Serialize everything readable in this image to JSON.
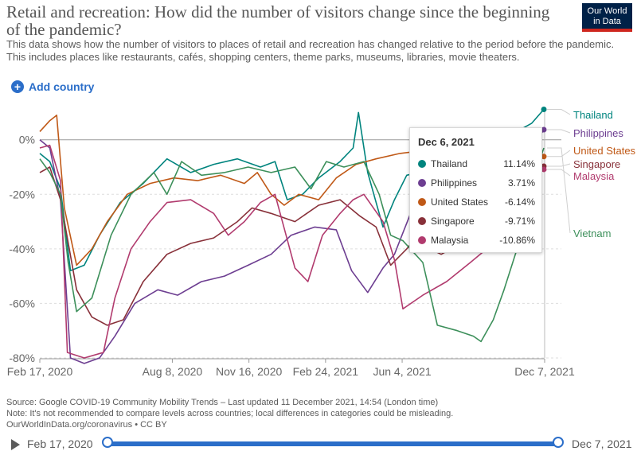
{
  "header": {
    "title": "Retail and recreation: How did the number of visitors change since the beginning of the pandemic?",
    "subtitle_line1": "This data shows how the number of visitors to places of retail and recreation has changed relative to the period before the pandemic.",
    "subtitle_line2": "This includes places like restaurants, cafés, shopping centers, theme parks, museums, libraries, movie theaters.",
    "logo_line1": "Our World",
    "logo_line2": "in Data"
  },
  "controls": {
    "add_country_label": "Add country"
  },
  "tooltip": {
    "date": "Dec 6, 2021",
    "rows": [
      {
        "name": "Thailand",
        "value": "11.14%",
        "color": "#00847e"
      },
      {
        "name": "Philippines",
        "value": "3.71%",
        "color": "#6d3e91"
      },
      {
        "name": "United States",
        "value": "-6.14%",
        "color": "#c05917"
      },
      {
        "name": "Singapore",
        "value": "-9.71%",
        "color": "#883039"
      },
      {
        "name": "Malaysia",
        "value": "-10.86%",
        "color": "#b13b6e"
      }
    ]
  },
  "footer": {
    "source": "Source: Google COVID-19 Community Mobility Trends – Last updated 11 December 2021, 14:54 (London time)",
    "note": "Note: It's not recommended to compare levels across countries; local differences in categories could be misleading.",
    "license": "OurWorldInData.org/coronavirus • CC BY"
  },
  "timeline": {
    "start_label": "Feb 17, 2020",
    "end_label": "Dec 7, 2021"
  },
  "chart_data": {
    "type": "line",
    "x_range": [
      "2020-02-17",
      "2021-12-07"
    ],
    "ylim": [
      -80,
      11
    ],
    "yticks": [
      0,
      -20,
      -40,
      -60,
      -80
    ],
    "ytick_labels": [
      "0%",
      "-20%",
      "-40%",
      "-60%",
      "-80%"
    ],
    "xticks": [
      "2020-02-17",
      "2020-08-08",
      "2020-11-16",
      "2021-02-24",
      "2021-06-04",
      "2021-12-07"
    ],
    "xtick_labels": [
      "Feb 17, 2020",
      "Aug 8, 2020",
      "Nov 16, 2020",
      "Feb 24, 2021",
      "Jun 4, 2021",
      "Dec 7, 2021"
    ],
    "grid": "horizontal dashed",
    "legend": "line end labels on the right",
    "series": [
      {
        "name": "Thailand",
        "color": "#00847e",
        "values": [
          [
            "2020-02-17",
            -5
          ],
          [
            "2020-03-01",
            -8
          ],
          [
            "2020-03-15",
            -18
          ],
          [
            "2020-03-28",
            -48
          ],
          [
            "2020-04-15",
            -46
          ],
          [
            "2020-05-05",
            -35
          ],
          [
            "2020-06-01",
            -23
          ],
          [
            "2020-07-01",
            -16
          ],
          [
            "2020-08-01",
            -7
          ],
          [
            "2020-09-01",
            -12
          ],
          [
            "2020-10-01",
            -9
          ],
          [
            "2020-11-01",
            -7
          ],
          [
            "2020-12-01",
            -10
          ],
          [
            "2020-12-20",
            -8
          ],
          [
            "2021-01-05",
            -22
          ],
          [
            "2021-01-25",
            -20
          ],
          [
            "2021-02-15",
            -14
          ],
          [
            "2021-03-15",
            -8
          ],
          [
            "2021-04-01",
            -3
          ],
          [
            "2021-04-08",
            10
          ],
          [
            "2021-04-20",
            -12
          ],
          [
            "2021-05-10",
            -32
          ],
          [
            "2021-05-25",
            -22
          ],
          [
            "2021-06-10",
            -13
          ],
          [
            "2021-06-25",
            -12
          ],
          [
            "2021-07-05",
            -28
          ],
          [
            "2021-07-15",
            -32
          ],
          [
            "2021-08-01",
            -17
          ],
          [
            "2021-08-20",
            -10
          ],
          [
            "2021-09-10",
            -7
          ],
          [
            "2021-10-01",
            -3
          ],
          [
            "2021-10-25",
            2
          ],
          [
            "2021-11-20",
            6
          ],
          [
            "2021-12-06",
            11.14
          ]
        ]
      },
      {
        "name": "Philippines",
        "color": "#6d3e91",
        "values": [
          [
            "2020-02-17",
            0
          ],
          [
            "2020-03-01",
            -3
          ],
          [
            "2020-03-15",
            -22
          ],
          [
            "2020-03-28",
            -80
          ],
          [
            "2020-04-15",
            -82
          ],
          [
            "2020-05-05",
            -80
          ],
          [
            "2020-05-25",
            -72
          ],
          [
            "2020-06-20",
            -60
          ],
          [
            "2020-07-20",
            -55
          ],
          [
            "2020-08-15",
            -57
          ],
          [
            "2020-09-15",
            -52
          ],
          [
            "2020-10-15",
            -50
          ],
          [
            "2020-11-15",
            -46
          ],
          [
            "2020-12-15",
            -42
          ],
          [
            "2021-01-10",
            -35
          ],
          [
            "2021-02-10",
            -32
          ],
          [
            "2021-03-10",
            -33
          ],
          [
            "2021-03-30",
            -48
          ],
          [
            "2021-04-20",
            -56
          ],
          [
            "2021-05-10",
            -47
          ],
          [
            "2021-05-25",
            -42
          ],
          [
            "2021-06-15",
            -27
          ],
          [
            "2021-07-05",
            -25
          ],
          [
            "2021-07-20",
            -36
          ],
          [
            "2021-08-10",
            -40
          ],
          [
            "2021-09-01",
            -38
          ],
          [
            "2021-09-20",
            -30
          ],
          [
            "2021-10-10",
            -22
          ],
          [
            "2021-10-30",
            -12
          ],
          [
            "2021-11-20",
            -3
          ],
          [
            "2021-12-06",
            3.71
          ]
        ]
      },
      {
        "name": "United States",
        "color": "#c05917",
        "values": [
          [
            "2020-02-17",
            3
          ],
          [
            "2020-03-01",
            7
          ],
          [
            "2020-03-10",
            9
          ],
          [
            "2020-03-20",
            -25
          ],
          [
            "2020-04-05",
            -46
          ],
          [
            "2020-04-25",
            -40
          ],
          [
            "2020-05-15",
            -30
          ],
          [
            "2020-06-10",
            -20
          ],
          [
            "2020-07-10",
            -16
          ],
          [
            "2020-08-10",
            -14
          ],
          [
            "2020-09-10",
            -15
          ],
          [
            "2020-10-10",
            -13
          ],
          [
            "2020-11-10",
            -16
          ],
          [
            "2020-11-27",
            -12
          ],
          [
            "2020-12-15",
            -20
          ],
          [
            "2021-01-01",
            -24
          ],
          [
            "2021-01-20",
            -20
          ],
          [
            "2021-02-15",
            -22
          ],
          [
            "2021-03-10",
            -14
          ],
          [
            "2021-04-05",
            -9
          ],
          [
            "2021-05-01",
            -7
          ],
          [
            "2021-06-01",
            -5
          ],
          [
            "2021-07-01",
            -4
          ],
          [
            "2021-07-20",
            -3
          ],
          [
            "2021-08-10",
            -8
          ],
          [
            "2021-09-05",
            -7
          ],
          [
            "2021-10-01",
            -8
          ],
          [
            "2021-10-30",
            -7
          ],
          [
            "2021-11-26",
            -3
          ],
          [
            "2021-12-06",
            -6.14
          ]
        ]
      },
      {
        "name": "Singapore",
        "color": "#883039",
        "values": [
          [
            "2020-02-17",
            -12
          ],
          [
            "2020-03-01",
            -10
          ],
          [
            "2020-03-15",
            -22
          ],
          [
            "2020-04-05",
            -55
          ],
          [
            "2020-04-25",
            -65
          ],
          [
            "2020-05-15",
            -68
          ],
          [
            "2020-06-05",
            -66
          ],
          [
            "2020-07-01",
            -52
          ],
          [
            "2020-08-01",
            -42
          ],
          [
            "2020-09-01",
            -38
          ],
          [
            "2020-10-01",
            -36
          ],
          [
            "2020-11-01",
            -30
          ],
          [
            "2020-11-20",
            -25
          ],
          [
            "2020-12-15",
            -27
          ],
          [
            "2021-01-15",
            -30
          ],
          [
            "2021-02-15",
            -24
          ],
          [
            "2021-03-15",
            -22
          ],
          [
            "2021-04-10",
            -28
          ],
          [
            "2021-05-01",
            -32
          ],
          [
            "2021-05-20",
            -46
          ],
          [
            "2021-06-10",
            -40
          ],
          [
            "2021-06-25",
            -35
          ],
          [
            "2021-07-10",
            -40
          ],
          [
            "2021-07-25",
            -42
          ],
          [
            "2021-08-20",
            -38
          ],
          [
            "2021-09-20",
            -33
          ],
          [
            "2021-10-20",
            -30
          ],
          [
            "2021-11-20",
            -16
          ],
          [
            "2021-12-06",
            -9.71
          ]
        ]
      },
      {
        "name": "Malaysia",
        "color": "#b13b6e",
        "values": [
          [
            "2020-02-17",
            -3
          ],
          [
            "2020-03-01",
            -2
          ],
          [
            "2020-03-15",
            -15
          ],
          [
            "2020-03-24",
            -78
          ],
          [
            "2020-04-15",
            -80
          ],
          [
            "2020-05-10",
            -78
          ],
          [
            "2020-05-25",
            -58
          ],
          [
            "2020-06-15",
            -40
          ],
          [
            "2020-07-10",
            -30
          ],
          [
            "2020-08-01",
            -23
          ],
          [
            "2020-09-01",
            -22
          ],
          [
            "2020-10-01",
            -27
          ],
          [
            "2020-10-20",
            -35
          ],
          [
            "2020-11-10",
            -30
          ],
          [
            "2020-12-01",
            -23
          ],
          [
            "2020-12-20",
            -20
          ],
          [
            "2021-01-15",
            -47
          ],
          [
            "2021-02-01",
            -52
          ],
          [
            "2021-02-20",
            -35
          ],
          [
            "2021-03-15",
            -27
          ],
          [
            "2021-04-01",
            -22
          ],
          [
            "2021-04-15",
            -20
          ],
          [
            "2021-05-10",
            -30
          ],
          [
            "2021-05-25",
            -44
          ],
          [
            "2021-06-05",
            -62
          ],
          [
            "2021-07-01",
            -57
          ],
          [
            "2021-08-01",
            -52
          ],
          [
            "2021-09-01",
            -45
          ],
          [
            "2021-10-01",
            -38
          ],
          [
            "2021-11-01",
            -25
          ],
          [
            "2021-11-25",
            -14
          ],
          [
            "2021-12-06",
            -10.86
          ]
        ]
      },
      {
        "name": "Vietnam",
        "color": "#3c8f5a",
        "values": [
          [
            "2020-02-17",
            -7
          ],
          [
            "2020-03-01",
            -12
          ],
          [
            "2020-03-15",
            -20
          ],
          [
            "2020-03-25",
            -45
          ],
          [
            "2020-04-05",
            -63
          ],
          [
            "2020-04-25",
            -58
          ],
          [
            "2020-05-20",
            -35
          ],
          [
            "2020-06-15",
            -20
          ],
          [
            "2020-07-15",
            -12
          ],
          [
            "2020-08-01",
            -20
          ],
          [
            "2020-08-20",
            -8
          ],
          [
            "2020-09-15",
            -13
          ],
          [
            "2020-10-15",
            -12
          ],
          [
            "2020-11-15",
            -10
          ],
          [
            "2020-12-15",
            -12
          ],
          [
            "2021-01-15",
            -10
          ],
          [
            "2021-02-05",
            -18
          ],
          [
            "2021-02-25",
            -8
          ],
          [
            "2021-03-20",
            -10
          ],
          [
            "2021-04-15",
            -8
          ],
          [
            "2021-05-05",
            -20
          ],
          [
            "2021-05-20",
            -35
          ],
          [
            "2021-06-05",
            -37
          ],
          [
            "2021-07-01",
            -45
          ],
          [
            "2021-07-20",
            -68
          ],
          [
            "2021-08-15",
            -70
          ],
          [
            "2021-09-05",
            -72
          ],
          [
            "2021-09-15",
            -74
          ],
          [
            "2021-10-01",
            -66
          ],
          [
            "2021-10-15",
            -55
          ],
          [
            "2021-11-01",
            -40
          ],
          [
            "2021-11-15",
            -25
          ],
          [
            "2021-11-25",
            -12
          ],
          [
            "2021-12-06",
            -3
          ]
        ]
      }
    ]
  }
}
